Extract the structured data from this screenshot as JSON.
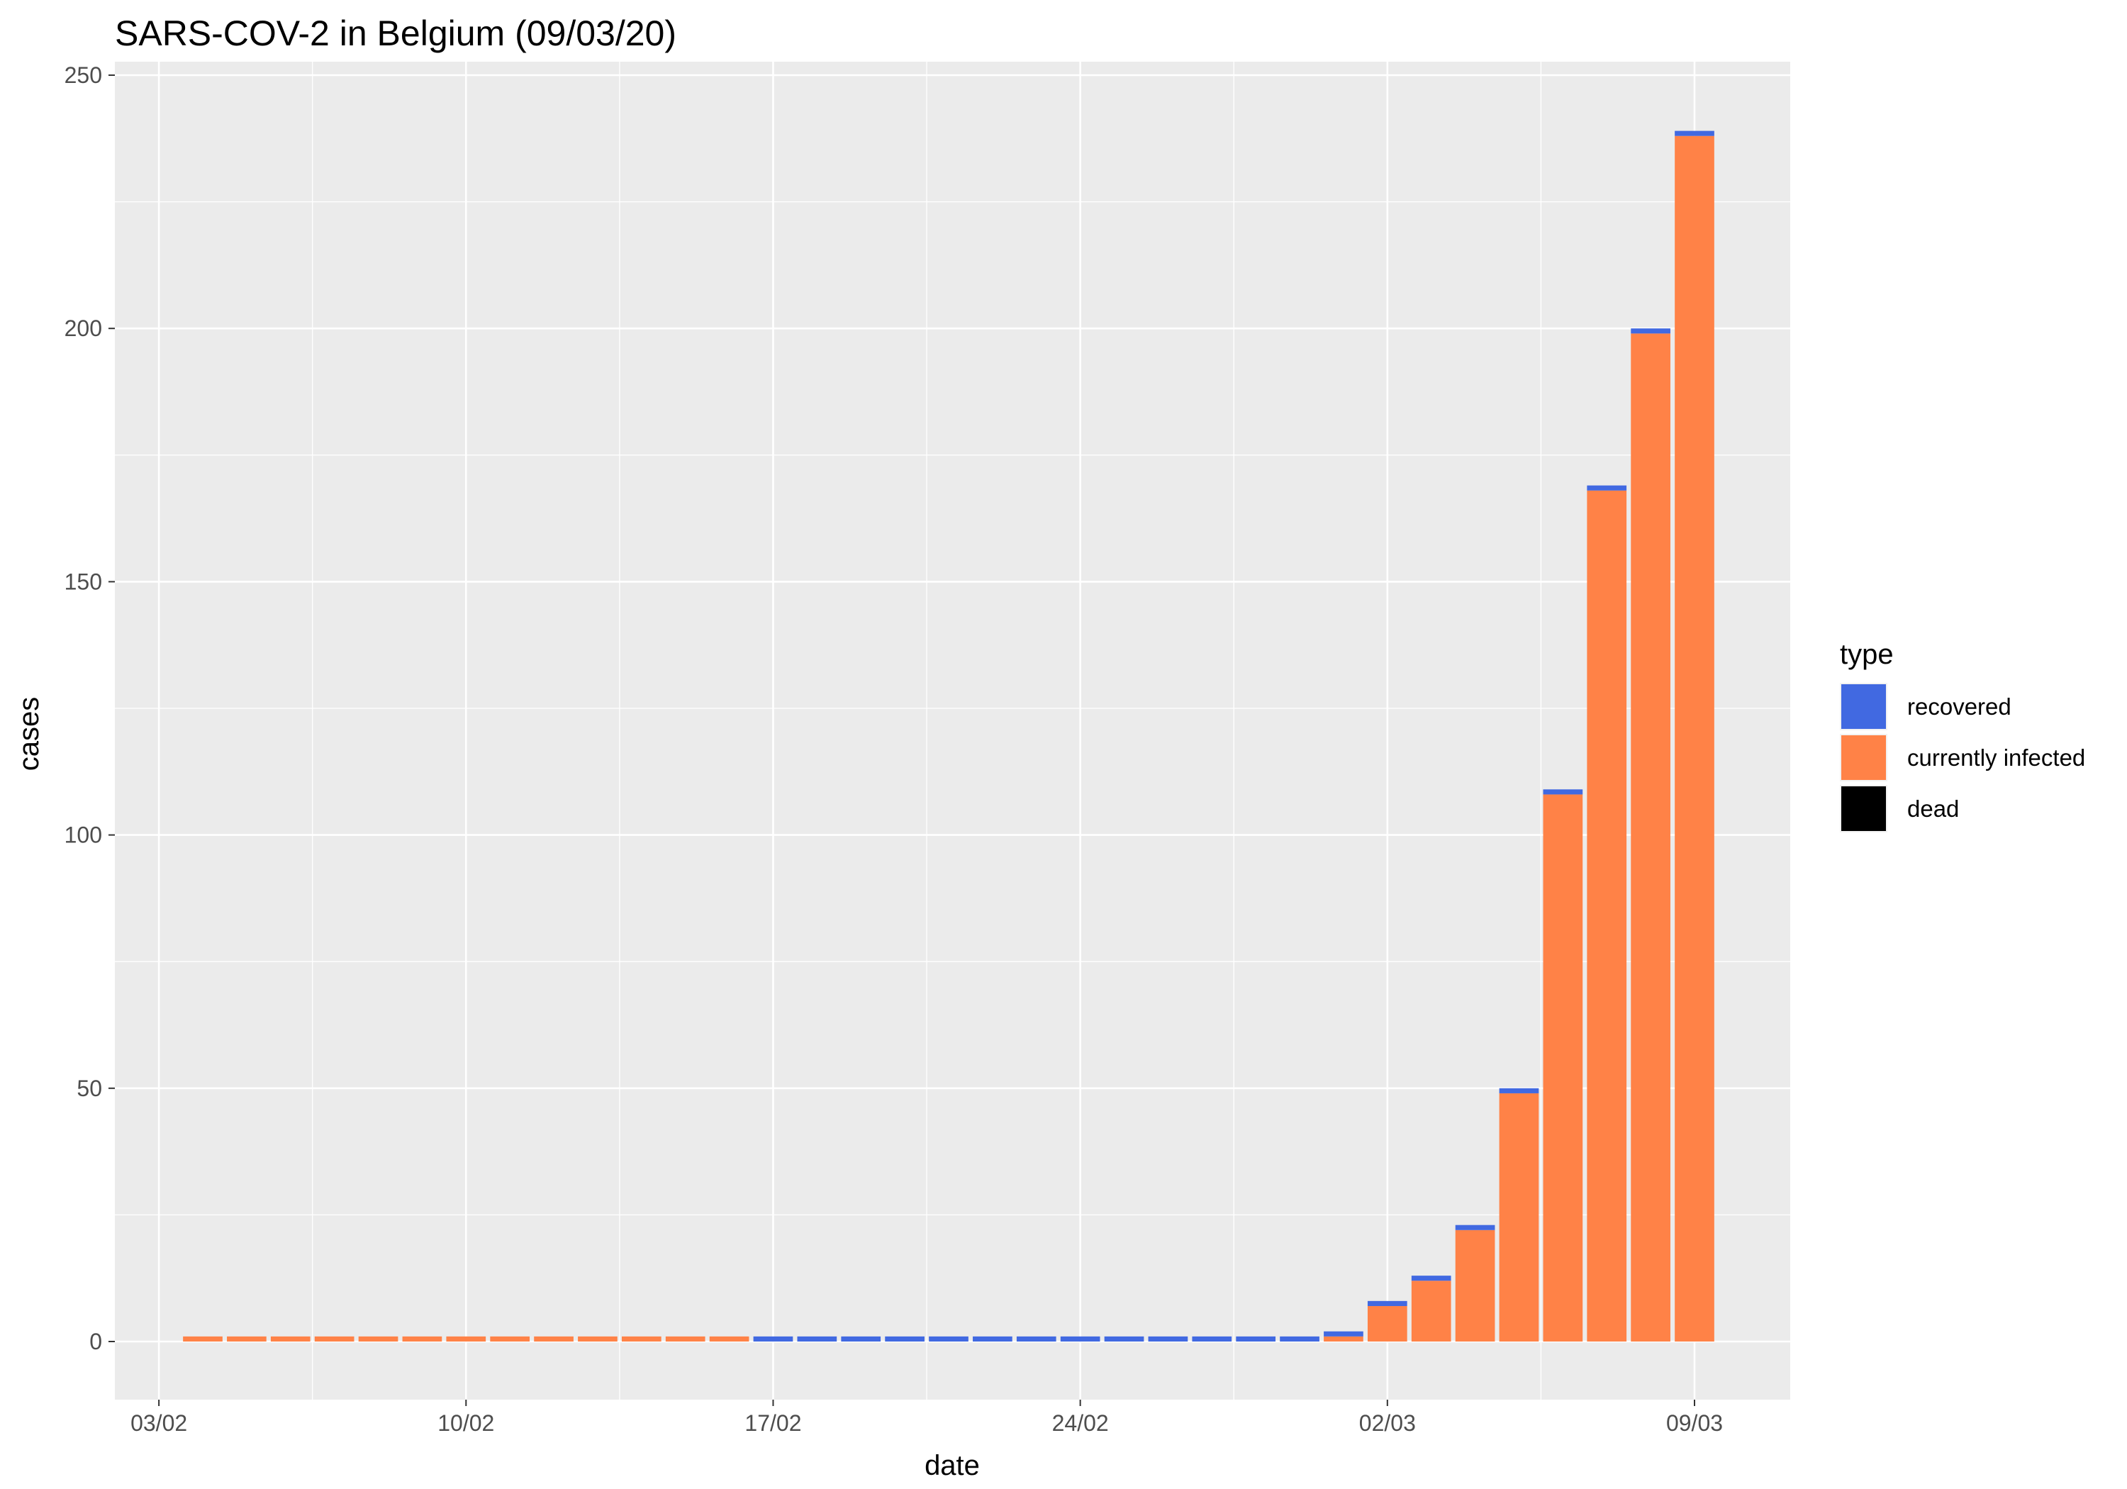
{
  "chart_data": {
    "type": "bar",
    "stacked": true,
    "title": "SARS-COV-2 in Belgium (09/03/20)",
    "xlabel": "date",
    "ylabel": "cases",
    "x_tick_labels": [
      "03/02",
      "10/02",
      "17/02",
      "24/02",
      "02/03",
      "09/03"
    ],
    "y_ticks": [
      0,
      50,
      100,
      150,
      200,
      250
    ],
    "ylim": [
      -7,
      250
    ],
    "grid": true,
    "legend": {
      "title": "type",
      "position": "right",
      "entries": [
        "recovered",
        "currently infected",
        "dead"
      ]
    },
    "categories": [
      "04/02",
      "05/02",
      "06/02",
      "07/02",
      "08/02",
      "09/02",
      "10/02",
      "11/02",
      "12/02",
      "13/02",
      "14/02",
      "15/02",
      "16/02",
      "17/02",
      "18/02",
      "19/02",
      "20/02",
      "21/02",
      "22/02",
      "23/02",
      "24/02",
      "25/02",
      "26/02",
      "27/02",
      "28/02",
      "29/02",
      "01/03",
      "02/03",
      "03/03",
      "04/03",
      "05/03",
      "06/03",
      "07/03",
      "08/03",
      "09/03"
    ],
    "series": [
      {
        "name": "dead",
        "color": "#000000",
        "values": [
          0,
          0,
          0,
          0,
          0,
          0,
          0,
          0,
          0,
          0,
          0,
          0,
          0,
          0,
          0,
          0,
          0,
          0,
          0,
          0,
          0,
          0,
          0,
          0,
          0,
          0,
          0,
          0,
          0,
          0,
          0,
          0,
          0,
          0,
          0
        ]
      },
      {
        "name": "currently infected",
        "color": "#FF8247",
        "values": [
          1,
          1,
          1,
          1,
          1,
          1,
          1,
          1,
          1,
          1,
          1,
          1,
          1,
          0,
          0,
          0,
          0,
          0,
          0,
          0,
          0,
          0,
          0,
          0,
          0,
          0,
          1,
          7,
          12,
          22,
          49,
          108,
          168,
          199,
          238
        ]
      },
      {
        "name": "recovered",
        "color": "#4169E1",
        "values": [
          0,
          0,
          0,
          0,
          0,
          0,
          0,
          0,
          0,
          0,
          0,
          0,
          0,
          1,
          1,
          1,
          1,
          1,
          1,
          1,
          1,
          1,
          1,
          1,
          1,
          1,
          1,
          1,
          1,
          1,
          1,
          1,
          1,
          1,
          1
        ]
      }
    ]
  }
}
